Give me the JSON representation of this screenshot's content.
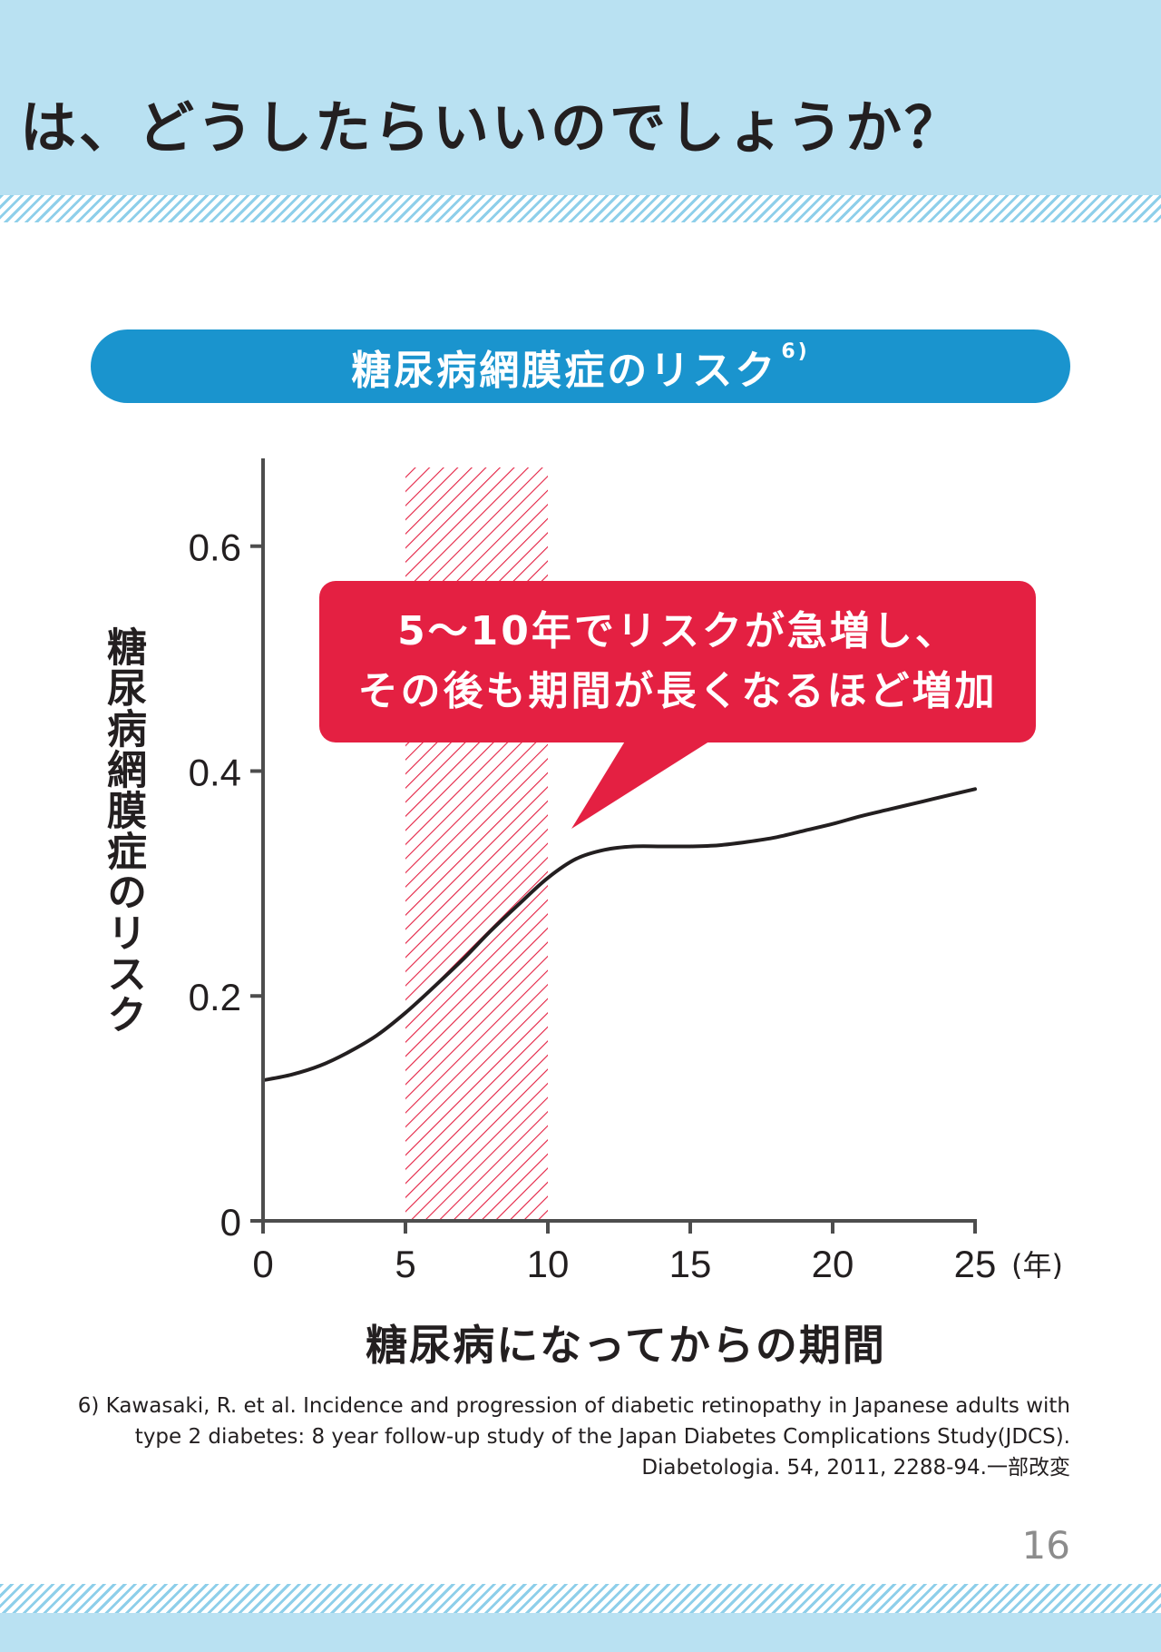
{
  "header": {
    "title": "は、どうしたらいいのでしょうか？"
  },
  "section": {
    "title": "糖尿病網膜症のリスク",
    "note": "6)"
  },
  "callout": {
    "line1": "5〜10年でリスクが急増し、",
    "line2": "その後も期間が長くなるほど増加"
  },
  "chart_data": {
    "type": "line",
    "title": "糖尿病網膜症のリスク",
    "xlabel": "糖尿病になってからの期間",
    "ylabel": "糖尿病網膜症のリスク",
    "x_unit": "(年)",
    "xlim": [
      0,
      25
    ],
    "ylim": [
      0,
      0.67
    ],
    "x_ticks": [
      0,
      5,
      10,
      15,
      20,
      25
    ],
    "x_tick_labels": [
      "0",
      "5",
      "10",
      "15",
      "20",
      "25"
    ],
    "y_ticks": [
      0,
      0.2,
      0.4,
      0.6
    ],
    "y_tick_labels": [
      "0",
      "0.2",
      "0.4",
      "0.6"
    ],
    "grid": false,
    "highlight_range": [
      5,
      10
    ],
    "series": [
      {
        "x": [
          0,
          1,
          2,
          3,
          4,
          5,
          6,
          7,
          8,
          9,
          10,
          11,
          12,
          13,
          14,
          15,
          16,
          17,
          18,
          19,
          20,
          21,
          22,
          23,
          24,
          25
        ],
        "values": [
          0.125,
          0.13,
          0.138,
          0.15,
          0.165,
          0.185,
          0.208,
          0.232,
          0.258,
          0.282,
          0.305,
          0.322,
          0.33,
          0.333,
          0.333,
          0.333,
          0.334,
          0.337,
          0.341,
          0.347,
          0.353,
          0.36,
          0.366,
          0.372,
          0.378,
          0.384
        ]
      }
    ],
    "colors": {
      "line": "#231f20",
      "axis": "#4d4d4d",
      "highlight": "#e42042"
    }
  },
  "reference": {
    "line1": "6) Kawasaki, R. et al. Incidence and progression of diabetic retinopathy in Japanese adults with",
    "line2": "type 2 diabetes: 8 year follow-up study of the Japan Diabetes Complications Study(JDCS).",
    "line3": "Diabetologia. 54, 2011, 2288-94.一部改変"
  },
  "page_number": "16"
}
